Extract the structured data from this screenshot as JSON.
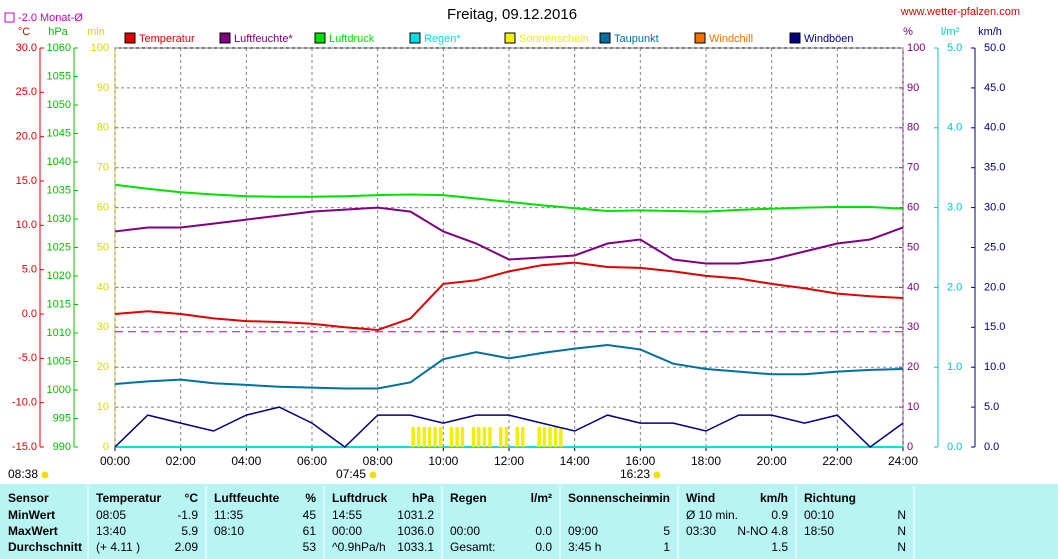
{
  "chart_data": {
    "type": "line",
    "title": "Freitag, 09.12.2016",
    "source": "www.wetter-pfalzen.com",
    "reference": {
      "label": "-2.0 Monat-Ø",
      "value": -2.0,
      "color": "#c000c0",
      "axis": "°C"
    },
    "axes": [
      {
        "name": "°C",
        "color": "#e00000",
        "lim": [
          -15,
          30
        ],
        "ticks": [
          {
            "value": 30,
            "label": "30.0"
          },
          {
            "value": 25,
            "label": "25.0"
          },
          {
            "value": 20,
            "label": "20.0"
          },
          {
            "value": 15,
            "label": "15.0"
          },
          {
            "value": 10,
            "label": "10.0"
          },
          {
            "value": 5,
            "label": "5.0"
          },
          {
            "value": 0,
            "label": "0.0"
          },
          {
            "value": -5,
            "label": "-5.0"
          },
          {
            "value": -10,
            "label": "-10.0"
          },
          {
            "value": -15,
            "label": "-15.0"
          }
        ]
      },
      {
        "name": "hPa",
        "color": "#00c000",
        "lim": [
          990,
          1060
        ],
        "ticks": [
          1060,
          1055,
          1050,
          1045,
          1040,
          1035,
          1030,
          1025,
          1020,
          1015,
          1010,
          1005,
          1000,
          995,
          990
        ]
      },
      {
        "name": "min",
        "color": "#d8d800",
        "lim": [
          0,
          100
        ],
        "ticks": [
          100,
          90,
          80,
          70,
          60,
          50,
          40,
          30,
          20,
          10,
          0
        ]
      },
      {
        "name": "%",
        "color": "#800080",
        "lim": [
          0,
          100
        ],
        "ticks": [
          100,
          90,
          80,
          70,
          60,
          50,
          40,
          30,
          20,
          10,
          0
        ]
      },
      {
        "name": "l/m²",
        "color": "#00c8c8",
        "lim": [
          0,
          5
        ],
        "ticks": [
          {
            "value": 5,
            "label": "5.0"
          },
          {
            "value": 4,
            "label": "4.0"
          },
          {
            "value": 3,
            "label": "3.0"
          },
          {
            "value": 2,
            "label": "2.0"
          },
          {
            "value": 1,
            "label": "1.0"
          },
          {
            "value": 0,
            "label": "0.0"
          }
        ]
      },
      {
        "name": "km/h",
        "color": "#000080",
        "lim": [
          0,
          50
        ],
        "ticks": [
          {
            "value": 50,
            "label": "50.0"
          },
          {
            "value": 45,
            "label": "45.0"
          },
          {
            "value": 40,
            "label": "40.0"
          },
          {
            "value": 35,
            "label": "35.0"
          },
          {
            "value": 30,
            "label": "30.0"
          },
          {
            "value": 25,
            "label": "25.0"
          },
          {
            "value": 20,
            "label": "20.0"
          },
          {
            "value": 15,
            "label": "15.0"
          },
          {
            "value": 10,
            "label": "10.0"
          },
          {
            "value": 5,
            "label": "5.0"
          },
          {
            "value": 0,
            "label": "0.0"
          }
        ]
      }
    ],
    "grid": true,
    "xlim": [
      0,
      24
    ],
    "xticks": [
      {
        "value": 0,
        "label": "00:00"
      },
      {
        "value": 2,
        "label": "02:00"
      },
      {
        "value": 4,
        "label": "04:00"
      },
      {
        "value": 6,
        "label": "06:00"
      },
      {
        "value": 8,
        "label": "08:00"
      },
      {
        "value": 10,
        "label": "10:00"
      },
      {
        "value": 12,
        "label": "12:00"
      },
      {
        "value": 14,
        "label": "14:00"
      },
      {
        "value": 16,
        "label": "16:00"
      },
      {
        "value": 18,
        "label": "18:00"
      },
      {
        "value": 20,
        "label": "20:00"
      },
      {
        "value": 22,
        "label": "22:00"
      },
      {
        "value": 24,
        "label": "24:00"
      }
    ],
    "x": [
      0,
      1,
      2,
      3,
      4,
      5,
      6,
      7,
      8,
      9,
      10,
      11,
      12,
      13,
      14,
      15,
      16,
      17,
      18,
      19,
      20,
      21,
      22,
      23,
      24
    ],
    "series": [
      {
        "name": "Temperatur",
        "color": "#e00000",
        "axis": "°C",
        "values": [
          0.0,
          0.3,
          0.0,
          -0.5,
          -0.8,
          -0.9,
          -1.1,
          -1.5,
          -1.8,
          -0.5,
          3.4,
          3.8,
          4.8,
          5.5,
          5.8,
          5.3,
          5.2,
          4.8,
          4.3,
          4.0,
          3.4,
          2.9,
          2.3,
          2.0,
          1.8
        ]
      },
      {
        "name": "Luftfeuchte*",
        "color": "#800080",
        "axis": "%",
        "values": [
          54,
          55,
          55,
          56,
          57,
          58,
          59,
          59.5,
          60,
          59,
          54,
          51,
          47,
          47.5,
          48,
          51,
          52,
          47,
          46,
          46,
          47,
          49,
          51,
          52,
          55
        ]
      },
      {
        "name": "Luftdruck",
        "color": "#00e000",
        "axis": "hPa",
        "values": [
          1036.0,
          1035.3,
          1034.7,
          1034.3,
          1034.0,
          1033.9,
          1033.9,
          1034.0,
          1034.2,
          1034.3,
          1034.2,
          1033.6,
          1033.0,
          1032.4,
          1031.9,
          1031.4,
          1031.5,
          1031.4,
          1031.3,
          1031.6,
          1031.8,
          1032.0,
          1032.1,
          1032.1,
          1031.8
        ]
      },
      {
        "name": "Regen*",
        "color": "#00e0e0",
        "axis": "l/m²",
        "values": [
          0,
          0,
          0,
          0,
          0,
          0,
          0,
          0,
          0,
          0,
          0,
          0,
          0,
          0,
          0,
          0,
          0,
          0,
          0,
          0,
          0,
          0,
          0,
          0,
          0
        ]
      },
      {
        "name": "Sonnenschein",
        "color": "#f0f000",
        "axis": "min",
        "x": [
          9.08,
          9.25,
          9.42,
          9.58,
          9.75,
          9.92,
          10.25,
          10.42,
          10.58,
          10.92,
          11.08,
          11.25,
          11.42,
          11.75,
          11.92,
          12.25,
          12.42,
          12.92,
          13.08,
          13.25,
          13.42,
          13.58
        ],
        "values": [
          5,
          5,
          5,
          5,
          5,
          5,
          5,
          5,
          5,
          5,
          5,
          5,
          5,
          5,
          5,
          5,
          5,
          5,
          5,
          5,
          5,
          5
        ]
      },
      {
        "name": "Taupunkt",
        "color": "#0070a0",
        "axis": "°C",
        "values": [
          -7.9,
          -7.6,
          -7.4,
          -7.8,
          -8.0,
          -8.2,
          -8.3,
          -8.4,
          -8.4,
          -7.7,
          -5.1,
          -4.3,
          -5.0,
          -4.4,
          -3.9,
          -3.5,
          -4.0,
          -5.6,
          -6.2,
          -6.5,
          -6.8,
          -6.8,
          -6.5,
          -6.3,
          -6.2
        ]
      },
      {
        "name": "Windchill",
        "color": "#f07000",
        "axis": "°C"
      },
      {
        "name": "Windböen",
        "color": "#000080",
        "axis": "km/h",
        "values": [
          0,
          4,
          3,
          2,
          4,
          5,
          3,
          0,
          4,
          4,
          3,
          4,
          4,
          3,
          2,
          4,
          3,
          3,
          2,
          4,
          4,
          3,
          4,
          0,
          3
        ]
      }
    ],
    "sun_labels": [
      "08:38",
      "07:45",
      "16:23"
    ]
  },
  "table": {
    "header": [
      [
        "Sensor"
      ],
      [
        "Temperatur",
        "°C"
      ],
      [
        "Luftfeuchte",
        "%"
      ],
      [
        "Luftdruck",
        "hPa"
      ],
      [
        "Regen",
        "l/m²"
      ],
      [
        "Sonnenschein",
        "min"
      ],
      [
        "Wind",
        "km/h"
      ],
      [
        "Richtung"
      ]
    ],
    "rows": [
      [
        "MinWert",
        [
          "08:05",
          "-1.9"
        ],
        [
          "11:35",
          "45"
        ],
        [
          "14:55",
          "1031.2"
        ],
        [
          null,
          null
        ],
        [
          null,
          null
        ],
        [
          "Ø 10 min.",
          "0.9"
        ],
        [
          "00:10",
          "N"
        ]
      ],
      [
        "MaxWert",
        [
          "13:40",
          "5.9"
        ],
        [
          "08:10",
          "61"
        ],
        [
          "00:00",
          "1036.0"
        ],
        [
          "00:00",
          "0.0"
        ],
        [
          "09:00",
          "5"
        ],
        [
          "03:30",
          "N-NO 4.8"
        ],
        [
          "18:50",
          "N"
        ]
      ],
      [
        "Durchschnitt",
        [
          "(+ 4.11 )",
          "2.09"
        ],
        [
          null,
          "53"
        ],
        [
          "^0.9hPa/h",
          "1033.1"
        ],
        [
          "Gesamt:",
          "0.0"
        ],
        [
          "3:45 h",
          "1"
        ],
        [
          null,
          "1.5"
        ],
        [
          null,
          "N"
        ]
      ]
    ]
  }
}
